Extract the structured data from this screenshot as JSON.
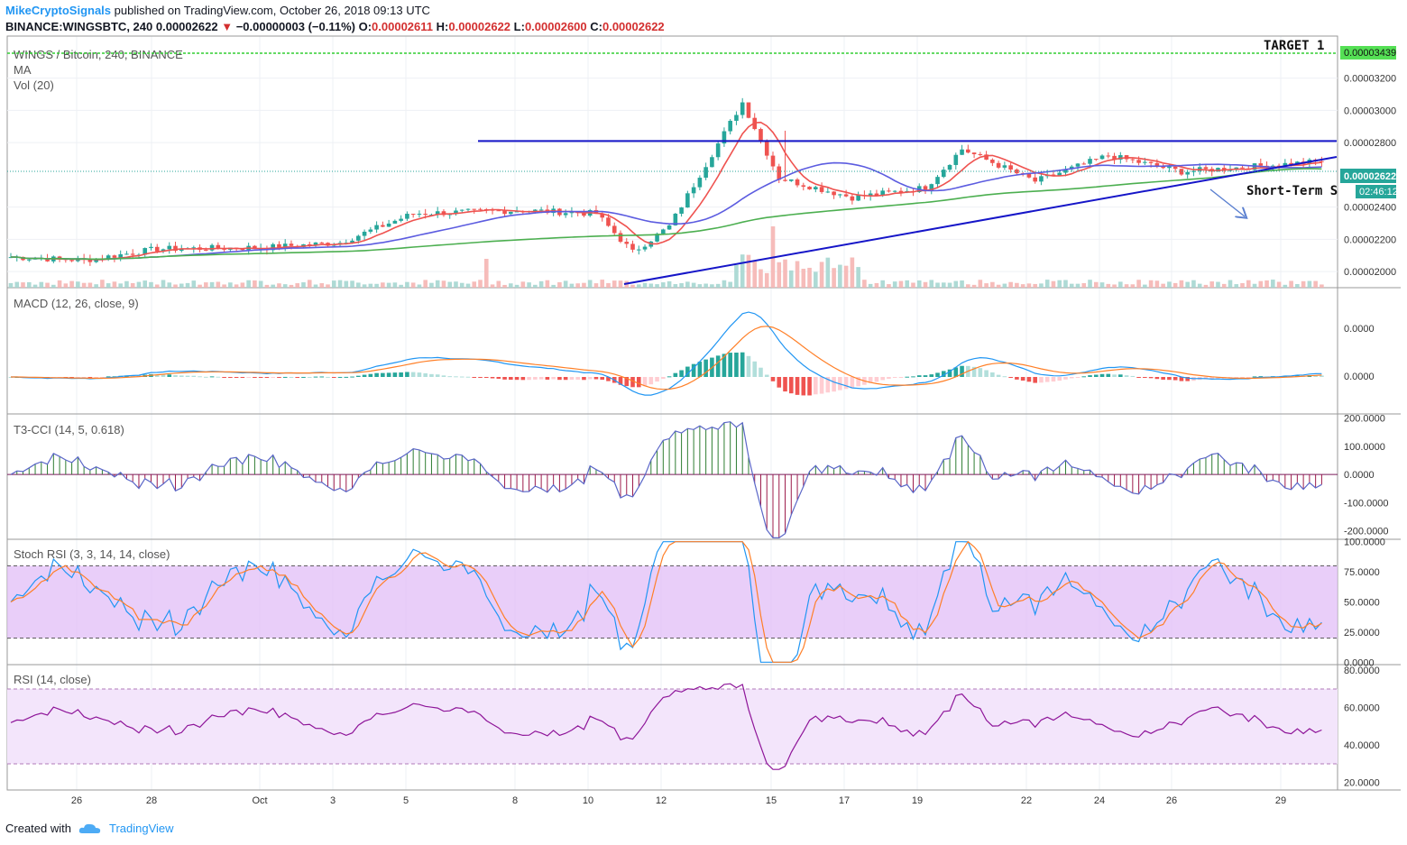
{
  "header": {
    "author": "MikeCryptoSignals",
    "published": "published on TradingView.com, October 26, 2018 09:13 UTC",
    "symbol_line": "BINANCE:WINGSBTC, 240",
    "last": "0.00002622",
    "change": "−0.00000003 (−0.11%)",
    "o_label": "O:",
    "o": "0.00002611",
    "h_label": "H:",
    "h": "0.00002622",
    "l_label": "L:",
    "l": "0.00002600",
    "c_label": "C:",
    "c": "0.00002622"
  },
  "footer": {
    "created_with": "Created with",
    "brand": "TradingView"
  },
  "colors": {
    "up": "#26a69a",
    "down": "#ef5350",
    "ma_fast": "#ef5350",
    "ma_mid": "#5c5ce0",
    "ma_slow": "#4caf50",
    "trend": "#1515c8",
    "macd": "#2196f3",
    "signal": "#ff7f27",
    "stoch_fill": "#e1bef7",
    "rsi_line": "#8e1599",
    "cci_line": "#5b67c8"
  },
  "chart_data": [
    {
      "id": "price",
      "type": "candlestick",
      "title": "WINGS / Bitcoin, 240, BINANCE",
      "indicators": [
        "MA",
        "Vol (20)"
      ],
      "x_ticks": [
        "26",
        "28",
        "Oct",
        "3",
        "5",
        "8",
        "10",
        "12",
        "15",
        "17",
        "19",
        "22",
        "24",
        "26",
        "29"
      ],
      "y_ticks": [
        "0.00002000",
        "0.00002200",
        "0.00002400",
        "0.00002800",
        "0.00003000",
        "0.00003200"
      ],
      "ylim": [
        1.9e-05,
        3.45e-05
      ],
      "last_price": "0.00002622",
      "countdown": "02:46:12",
      "target_label": "TARGET 1",
      "target_price": "0.00003439",
      "annotation": "Short-Term S",
      "resistance": 2.81e-05,
      "key_points": [
        {
          "date": "Sep 24",
          "close": 2.09e-05
        },
        {
          "date": "Sep 26",
          "close": 2.07e-05
        },
        {
          "date": "Sep 28",
          "close": 2.14e-05
        },
        {
          "date": "Oct 1",
          "close": 2.15e-05
        },
        {
          "date": "Oct 3",
          "close": 2.18e-05
        },
        {
          "date": "Oct 5",
          "close": 2.36e-05
        },
        {
          "date": "Oct 8",
          "close": 2.38e-05
        },
        {
          "date": "Oct 10",
          "close": 2.36e-05
        },
        {
          "date": "Oct 11",
          "close": 2.12e-05
        },
        {
          "date": "Oct 12",
          "close": 2.28e-05
        },
        {
          "date": "Oct 14",
          "close": 3.05e-05
        },
        {
          "date": "Oct 15",
          "close": 2.58e-05
        },
        {
          "date": "Oct 17",
          "close": 2.46e-05
        },
        {
          "date": "Oct 19",
          "close": 2.52e-05
        },
        {
          "date": "Oct 20",
          "close": 2.76e-05
        },
        {
          "date": "Oct 22",
          "close": 2.56e-05
        },
        {
          "date": "Oct 24",
          "close": 2.72e-05
        },
        {
          "date": "Oct 26",
          "close": 2.62e-05
        }
      ]
    },
    {
      "id": "macd",
      "type": "line",
      "title": "MACD (12, 26, close, 9)",
      "y_ticks": [
        "0.0000",
        "0.0000"
      ]
    },
    {
      "id": "cci",
      "type": "line",
      "title": "T3-CCI (14, 5, 0.618)",
      "y_ticks": [
        "200.0000",
        "100.0000",
        "0.0000",
        "-100.0000",
        "-200.0000"
      ],
      "ylim": [
        -230,
        215
      ]
    },
    {
      "id": "stoch",
      "type": "line",
      "title": "Stoch RSI (3, 3, 14, 14, close)",
      "y_ticks": [
        "100.0000",
        "75.0000",
        "50.0000",
        "25.0000",
        "0.0000"
      ],
      "ylim": [
        -2,
        102
      ],
      "bands": [
        20,
        80
      ]
    },
    {
      "id": "rsi",
      "type": "line",
      "title": "RSI (14, close)",
      "y_ticks": [
        "80.0000",
        "60.0000",
        "40.0000",
        "20.0000"
      ],
      "ylim": [
        16,
        83
      ],
      "bands": [
        30,
        70
      ]
    }
  ]
}
